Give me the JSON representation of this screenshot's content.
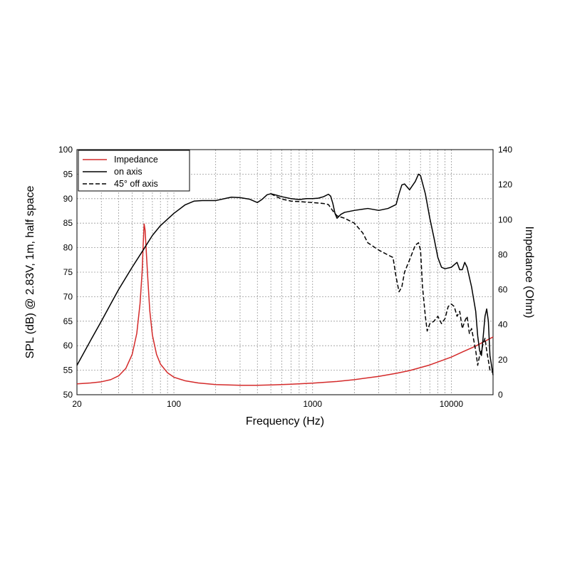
{
  "chart_data": {
    "type": "line",
    "xlabel": "Frequency (Hz)",
    "ylabel_left": "SPL (dB) @ 2.83V, 1m, half space",
    "ylabel_right": "Impedance (Ohm)",
    "xscale": "log",
    "xlim": [
      20,
      20000
    ],
    "ylim_left": [
      50,
      100
    ],
    "ylim_right": [
      0,
      140
    ],
    "x_ticks": [
      20,
      100,
      1000,
      10000
    ],
    "x_tick_labels": [
      "20",
      "100",
      "1000",
      "10000"
    ],
    "y_left_ticks": [
      50,
      55,
      60,
      65,
      70,
      75,
      80,
      85,
      90,
      95,
      100
    ],
    "y_left_tick_labels": [
      "50",
      "55",
      "60",
      "65",
      "70",
      "75",
      "80",
      "85",
      "90",
      "95",
      "100"
    ],
    "y_right_ticks": [
      0,
      20,
      40,
      60,
      80,
      100,
      120,
      140
    ],
    "y_right_tick_labels": [
      "0",
      "20",
      "40",
      "60",
      "80",
      "100",
      "120",
      "140"
    ],
    "grid": true,
    "legend_position": "top-left",
    "colors": {
      "impedance": "#d42a2a",
      "on_axis": "#000000",
      "off_axis": "#000000"
    },
    "series": [
      {
        "name": "Impedance",
        "axis": "right",
        "style": "solid",
        "color": "#d42a2a",
        "points": [
          [
            20,
            6.2
          ],
          [
            25,
            6.7
          ],
          [
            30,
            7.4
          ],
          [
            35,
            8.6
          ],
          [
            40,
            10.8
          ],
          [
            45,
            15.0
          ],
          [
            50,
            23.0
          ],
          [
            54,
            35.0
          ],
          [
            57,
            52.0
          ],
          [
            59,
            70.0
          ],
          [
            60,
            85.0
          ],
          [
            61,
            97.5
          ],
          [
            62,
            94.0
          ],
          [
            63,
            84.0
          ],
          [
            65,
            65.0
          ],
          [
            67,
            48.0
          ],
          [
            70,
            34.0
          ],
          [
            75,
            23.0
          ],
          [
            80,
            17.5
          ],
          [
            90,
            12.5
          ],
          [
            100,
            10.0
          ],
          [
            120,
            8.0
          ],
          [
            150,
            6.7
          ],
          [
            200,
            5.8
          ],
          [
            300,
            5.4
          ],
          [
            400,
            5.4
          ],
          [
            500,
            5.6
          ],
          [
            700,
            6.0
          ],
          [
            1000,
            6.6
          ],
          [
            1500,
            7.6
          ],
          [
            2000,
            8.6
          ],
          [
            3000,
            10.5
          ],
          [
            4000,
            12.2
          ],
          [
            5000,
            13.8
          ],
          [
            6000,
            15.5
          ],
          [
            7000,
            17.0
          ],
          [
            8000,
            18.7
          ],
          [
            10000,
            21.5
          ],
          [
            12000,
            24.4
          ],
          [
            15000,
            27.8
          ],
          [
            20000,
            33.0
          ]
        ]
      },
      {
        "name": "on axis",
        "axis": "left",
        "style": "solid",
        "color": "#000000",
        "points": [
          [
            20,
            56.0
          ],
          [
            25,
            61.0
          ],
          [
            30,
            65.0
          ],
          [
            35,
            68.5
          ],
          [
            40,
            71.5
          ],
          [
            50,
            76.0
          ],
          [
            60,
            79.5
          ],
          [
            70,
            82.5
          ],
          [
            80,
            84.5
          ],
          [
            100,
            87.0
          ],
          [
            120,
            88.7
          ],
          [
            140,
            89.5
          ],
          [
            160,
            89.6
          ],
          [
            200,
            89.6
          ],
          [
            240,
            90.1
          ],
          [
            260,
            90.3
          ],
          [
            300,
            90.2
          ],
          [
            350,
            89.9
          ],
          [
            400,
            89.2
          ],
          [
            430,
            89.8
          ],
          [
            470,
            90.8
          ],
          [
            500,
            91.0
          ],
          [
            550,
            90.7
          ],
          [
            600,
            90.4
          ],
          [
            700,
            90.0
          ],
          [
            800,
            89.8
          ],
          [
            900,
            90.0
          ],
          [
            1000,
            90.0
          ],
          [
            1100,
            90.1
          ],
          [
            1200,
            90.4
          ],
          [
            1300,
            90.9
          ],
          [
            1350,
            90.5
          ],
          [
            1400,
            89.0
          ],
          [
            1450,
            87.0
          ],
          [
            1500,
            86.0
          ],
          [
            1600,
            86.8
          ],
          [
            1700,
            87.2
          ],
          [
            2000,
            87.6
          ],
          [
            2500,
            88.0
          ],
          [
            3000,
            87.6
          ],
          [
            3500,
            88.0
          ],
          [
            4000,
            88.8
          ],
          [
            4200,
            91.0
          ],
          [
            4400,
            92.8
          ],
          [
            4600,
            93.0
          ],
          [
            5000,
            91.8
          ],
          [
            5500,
            93.5
          ],
          [
            5800,
            95.0
          ],
          [
            6000,
            94.7
          ],
          [
            6500,
            91.0
          ],
          [
            7000,
            86.0
          ],
          [
            7500,
            82.0
          ],
          [
            8000,
            78.0
          ],
          [
            8500,
            76.0
          ],
          [
            9000,
            75.7
          ],
          [
            10000,
            76.0
          ],
          [
            11000,
            77.0
          ],
          [
            11500,
            75.5
          ],
          [
            12000,
            75.5
          ],
          [
            12500,
            77.0
          ],
          [
            13000,
            76.0
          ],
          [
            14000,
            72.0
          ],
          [
            15000,
            67.0
          ],
          [
            15500,
            62.0
          ],
          [
            16000,
            59.0
          ],
          [
            16500,
            58.0
          ],
          [
            17000,
            62.0
          ],
          [
            17500,
            66.0
          ],
          [
            18000,
            67.5
          ],
          [
            18500,
            65.0
          ],
          [
            19000,
            58.0
          ],
          [
            20000,
            54.0
          ]
        ]
      },
      {
        "name": "45° off axis",
        "axis": "left",
        "style": "dashed",
        "color": "#000000",
        "points": [
          [
            500,
            91.0
          ],
          [
            550,
            90.4
          ],
          [
            600,
            89.9
          ],
          [
            700,
            89.5
          ],
          [
            800,
            89.4
          ],
          [
            1000,
            89.2
          ],
          [
            1200,
            89.0
          ],
          [
            1300,
            88.8
          ],
          [
            1400,
            87.5
          ],
          [
            1500,
            86.5
          ],
          [
            1700,
            86.0
          ],
          [
            2000,
            85.0
          ],
          [
            2300,
            83.0
          ],
          [
            2500,
            81.0
          ],
          [
            3000,
            79.5
          ],
          [
            3500,
            78.5
          ],
          [
            3800,
            78.0
          ],
          [
            4000,
            74.0
          ],
          [
            4200,
            71.0
          ],
          [
            4400,
            72.0
          ],
          [
            4600,
            75.0
          ],
          [
            5000,
            77.5
          ],
          [
            5500,
            80.5
          ],
          [
            5800,
            81.0
          ],
          [
            6000,
            79.5
          ],
          [
            6200,
            72.0
          ],
          [
            6500,
            66.0
          ],
          [
            6700,
            63.0
          ],
          [
            7000,
            64.5
          ],
          [
            7500,
            65.0
          ],
          [
            8000,
            66.0
          ],
          [
            8500,
            64.5
          ],
          [
            9000,
            65.5
          ],
          [
            9500,
            68.0
          ],
          [
            10000,
            68.5
          ],
          [
            10500,
            68.0
          ],
          [
            11000,
            66.0
          ],
          [
            11500,
            67.0
          ],
          [
            12000,
            63.5
          ],
          [
            12500,
            65.0
          ],
          [
            13000,
            66.0
          ],
          [
            13500,
            62.5
          ],
          [
            14000,
            63.5
          ],
          [
            15000,
            59.0
          ],
          [
            15500,
            56.0
          ],
          [
            16000,
            58.0
          ],
          [
            16500,
            59.0
          ],
          [
            17000,
            60.5
          ],
          [
            17500,
            61.5
          ],
          [
            18000,
            59.0
          ],
          [
            18500,
            57.0
          ],
          [
            19000,
            55.0
          ],
          [
            20000,
            54.5
          ]
        ]
      }
    ]
  }
}
